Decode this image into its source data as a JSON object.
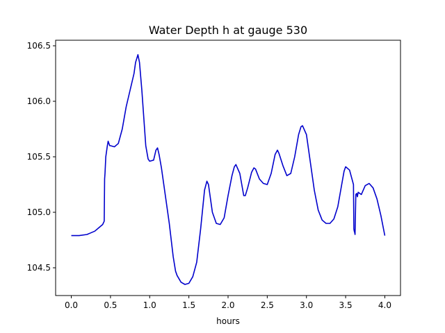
{
  "chart_data": {
    "type": "line",
    "title": "Water Depth h at gauge 530",
    "xlabel": "hours",
    "ylabel": "",
    "xlim": [
      -0.2,
      4.2
    ],
    "ylim": [
      104.25,
      106.55
    ],
    "xticks": [
      0.0,
      0.5,
      1.0,
      1.5,
      2.0,
      2.5,
      3.0,
      3.5,
      4.0
    ],
    "xtick_labels": [
      "0.0",
      "0.5",
      "1.0",
      "1.5",
      "2.0",
      "2.5",
      "3.0",
      "3.5",
      "4.0"
    ],
    "yticks": [
      104.5,
      105.0,
      105.5,
      106.0,
      106.5
    ],
    "ytick_labels": [
      "104.5",
      "105.0",
      "105.5",
      "106.0",
      "106.5"
    ],
    "grid": false,
    "legend": "none",
    "series": [
      {
        "color": "#0000cc",
        "x": [
          0.0,
          0.1,
          0.2,
          0.3,
          0.35,
          0.4,
          0.42,
          0.425,
          0.43,
          0.44,
          0.46,
          0.47,
          0.49,
          0.5,
          0.55,
          0.6,
          0.65,
          0.7,
          0.75,
          0.8,
          0.82,
          0.85,
          0.87,
          0.9,
          0.95,
          0.98,
          1.0,
          1.05,
          1.08,
          1.1,
          1.12,
          1.15,
          1.2,
          1.25,
          1.3,
          1.33,
          1.35,
          1.4,
          1.45,
          1.5,
          1.55,
          1.6,
          1.65,
          1.7,
          1.73,
          1.75,
          1.8,
          1.85,
          1.9,
          1.95,
          2.0,
          2.05,
          2.08,
          2.1,
          2.15,
          2.2,
          2.22,
          2.25,
          2.3,
          2.33,
          2.35,
          2.4,
          2.45,
          2.5,
          2.55,
          2.6,
          2.63,
          2.65,
          2.7,
          2.75,
          2.8,
          2.85,
          2.9,
          2.93,
          2.95,
          3.0,
          3.05,
          3.1,
          3.15,
          3.2,
          3.25,
          3.3,
          3.35,
          3.4,
          3.45,
          3.48,
          3.5,
          3.55,
          3.6,
          3.605,
          3.61,
          3.615,
          3.62,
          3.63,
          3.64,
          3.65,
          3.66,
          3.7,
          3.75,
          3.8,
          3.85,
          3.9,
          3.95,
          4.0
        ],
        "y": [
          104.79,
          104.79,
          104.8,
          104.83,
          104.86,
          104.89,
          104.92,
          105.3,
          105.35,
          105.5,
          105.6,
          105.64,
          105.6,
          105.6,
          105.59,
          105.62,
          105.75,
          105.95,
          106.1,
          106.25,
          106.35,
          106.42,
          106.35,
          106.1,
          105.6,
          105.48,
          105.46,
          105.47,
          105.56,
          105.58,
          105.52,
          105.4,
          105.15,
          104.9,
          104.6,
          104.47,
          104.43,
          104.37,
          104.35,
          104.36,
          104.42,
          104.55,
          104.85,
          105.2,
          105.28,
          105.25,
          105.0,
          104.9,
          104.89,
          104.95,
          105.15,
          105.33,
          105.41,
          105.43,
          105.35,
          105.15,
          105.15,
          105.22,
          105.36,
          105.4,
          105.39,
          105.3,
          105.26,
          105.25,
          105.35,
          105.52,
          105.56,
          105.53,
          105.42,
          105.33,
          105.35,
          105.5,
          105.7,
          105.77,
          105.78,
          105.7,
          105.45,
          105.2,
          105.02,
          104.93,
          104.9,
          104.9,
          104.94,
          105.05,
          105.25,
          105.37,
          105.41,
          105.38,
          105.25,
          104.85,
          104.83,
          104.82,
          104.8,
          105.16,
          105.17,
          105.14,
          105.18,
          105.16,
          105.24,
          105.26,
          105.22,
          105.12,
          104.97,
          104.79
        ]
      }
    ]
  }
}
